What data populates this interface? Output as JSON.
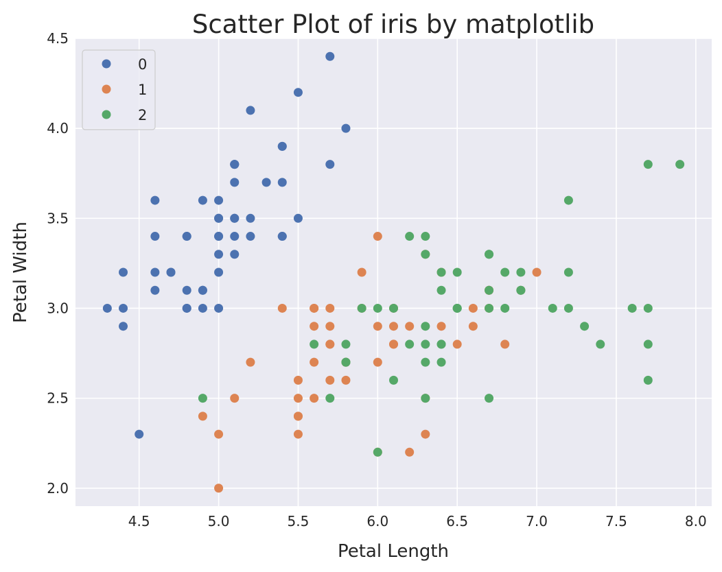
{
  "chart_data": {
    "type": "scatter",
    "title": "Scatter Plot of iris by matplotlib",
    "xlabel": "Petal Length",
    "ylabel": "Petal Width",
    "xlim": [
      4.1,
      8.1
    ],
    "ylim": [
      1.9,
      4.5
    ],
    "xticks": [
      4.5,
      5.0,
      5.5,
      6.0,
      6.5,
      7.0,
      7.5,
      8.0
    ],
    "yticks": [
      2.0,
      2.5,
      3.0,
      3.5,
      4.0,
      4.5
    ],
    "grid": true,
    "legend": "top-left",
    "series": [
      {
        "name": "0",
        "color": "#4c72b0",
        "x": [
          5.1,
          4.9,
          4.7,
          4.6,
          5.0,
          5.4,
          4.6,
          5.0,
          4.4,
          4.9,
          5.4,
          4.8,
          4.8,
          4.3,
          5.8,
          5.7,
          5.4,
          5.1,
          5.7,
          5.1,
          5.4,
          5.1,
          4.6,
          5.1,
          4.8,
          5.0,
          5.0,
          5.2,
          5.2,
          4.7,
          4.8,
          5.4,
          5.2,
          5.5,
          4.9,
          5.0,
          5.5,
          4.9,
          4.4,
          5.1,
          5.0,
          4.5,
          4.4,
          5.0,
          5.1,
          4.8,
          5.1,
          4.6,
          5.3,
          5.0
        ],
        "y": [
          3.5,
          3.0,
          3.2,
          3.1,
          3.6,
          3.9,
          3.4,
          3.4,
          2.9,
          3.1,
          3.7,
          3.4,
          3.0,
          3.0,
          4.0,
          4.4,
          3.9,
          3.5,
          3.8,
          3.8,
          3.4,
          3.7,
          3.6,
          3.3,
          3.4,
          3.0,
          3.4,
          3.5,
          3.4,
          3.2,
          3.1,
          3.4,
          4.1,
          4.2,
          3.1,
          3.2,
          3.5,
          3.6,
          3.0,
          3.4,
          3.5,
          2.3,
          3.2,
          3.5,
          3.8,
          3.0,
          3.8,
          3.2,
          3.7,
          3.3
        ]
      },
      {
        "name": "1",
        "color": "#dd8452",
        "x": [
          7.0,
          6.4,
          6.9,
          5.5,
          6.5,
          5.7,
          6.3,
          4.9,
          6.6,
          5.2,
          5.0,
          5.9,
          6.0,
          6.1,
          5.6,
          6.7,
          5.6,
          5.8,
          6.2,
          5.6,
          5.9,
          6.1,
          6.3,
          6.1,
          6.4,
          6.6,
          6.8,
          6.7,
          6.0,
          5.7,
          5.5,
          5.5,
          5.8,
          6.0,
          5.4,
          6.0,
          6.7,
          6.3,
          5.6,
          5.5,
          5.5,
          6.1,
          5.8,
          5.0,
          5.6,
          5.7,
          5.7,
          6.2,
          5.1,
          5.7
        ],
        "y": [
          3.2,
          3.2,
          3.1,
          2.3,
          2.8,
          2.8,
          3.3,
          2.4,
          2.9,
          2.7,
          2.0,
          3.0,
          2.2,
          2.9,
          2.9,
          3.1,
          3.0,
          2.7,
          2.2,
          2.5,
          3.2,
          2.8,
          2.5,
          2.8,
          2.9,
          3.0,
          2.8,
          3.0,
          2.9,
          2.6,
          2.4,
          2.4,
          2.7,
          2.7,
          3.0,
          3.4,
          3.1,
          2.3,
          3.0,
          2.5,
          2.6,
          3.0,
          2.6,
          2.3,
          2.7,
          3.0,
          2.9,
          2.9,
          2.5,
          2.8
        ]
      },
      {
        "name": "2",
        "color": "#55a868",
        "x": [
          6.3,
          5.8,
          7.1,
          6.3,
          6.5,
          7.6,
          4.9,
          7.3,
          6.7,
          7.2,
          6.5,
          6.4,
          6.8,
          5.7,
          5.8,
          6.4,
          6.5,
          7.7,
          7.7,
          6.0,
          6.9,
          5.6,
          7.7,
          6.3,
          6.7,
          7.2,
          6.2,
          6.1,
          6.4,
          7.2,
          7.4,
          7.9,
          6.4,
          6.3,
          6.1,
          7.7,
          6.3,
          6.4,
          6.0,
          6.9,
          6.7,
          6.9,
          5.8,
          6.8,
          6.7,
          6.7,
          6.3,
          6.5,
          6.2,
          5.9
        ],
        "y": [
          3.3,
          2.7,
          3.0,
          2.9,
          3.0,
          3.0,
          2.5,
          2.9,
          2.5,
          3.6,
          3.2,
          2.7,
          3.0,
          2.5,
          2.8,
          3.2,
          3.0,
          3.8,
          2.6,
          2.2,
          3.2,
          2.8,
          2.8,
          2.7,
          3.3,
          3.2,
          2.8,
          3.0,
          2.8,
          3.0,
          2.8,
          3.8,
          2.8,
          2.8,
          2.6,
          3.0,
          3.4,
          3.1,
          3.0,
          3.1,
          3.1,
          3.1,
          2.7,
          3.2,
          3.3,
          3.0,
          2.5,
          3.0,
          3.4,
          3.0
        ]
      }
    ]
  }
}
